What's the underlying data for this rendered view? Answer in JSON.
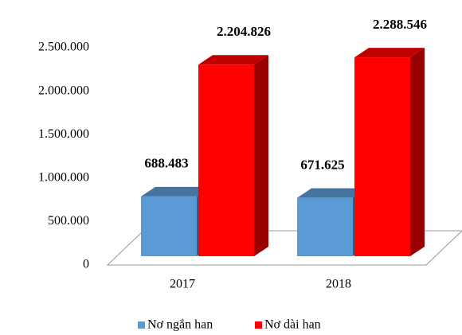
{
  "chart_data": {
    "type": "bar3d",
    "categories": [
      "2017",
      "2018"
    ],
    "series": [
      {
        "name": "Nơ ngắn han",
        "color": "#5b9bd5",
        "values": [
          688483,
          671625
        ],
        "value_labels": [
          "688.483",
          "671.625"
        ]
      },
      {
        "name": "Nơ dài han",
        "color": "#ff0000",
        "values": [
          2204826,
          2288546
        ],
        "value_labels": [
          "2.204.826",
          "2.288.546"
        ]
      }
    ],
    "ylim": [
      0,
      2500000
    ],
    "yticks": [
      0,
      {
        "value": 500000,
        "label": "500.000"
      },
      {
        "value": 1000000,
        "label": "1.000.000"
      },
      {
        "value": 1500000,
        "label": "1.500.000"
      },
      {
        "value": 2000000,
        "label": "2.000.000"
      },
      {
        "value": 2500000,
        "label": "2.500.000"
      }
    ],
    "legend": "bottom"
  }
}
